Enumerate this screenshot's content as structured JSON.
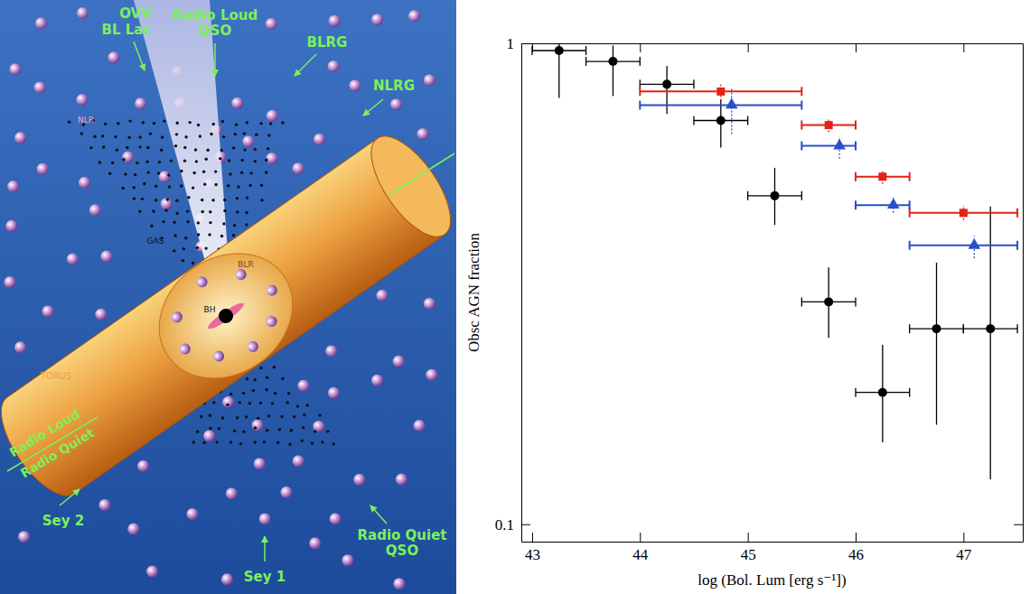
{
  "chart_data": {
    "type": "scatter",
    "x_label": "log (Bol. Lum [erg s⁻¹])",
    "y_label": "Obsc AGN fraction",
    "xlim": [
      42.9,
      47.55
    ],
    "ylim": [
      0.092,
      1
    ],
    "xticks": [
      43,
      44,
      45,
      46,
      47
    ],
    "yticks": [
      0.1,
      1
    ],
    "log": "y",
    "series": [
      {
        "color": "#000000",
        "marker": "circle",
        "line_style": "solid",
        "x": [
          43.25,
          43.75,
          44.25,
          44.75,
          45.25,
          45.75,
          46.25,
          46.75,
          47.25
        ],
        "values": [
          0.966,
          0.917,
          0.822,
          0.691,
          0.482,
          0.29,
          0.188,
          0.255,
          0.255
        ],
        "x_low": [
          43,
          43.5,
          44,
          44.5,
          45,
          45.5,
          46,
          46.5,
          47
        ],
        "x_high": [
          43.5,
          44,
          44.5,
          45,
          45.5,
          46,
          46.5,
          47,
          47.5
        ],
        "y_low": [
          0.77,
          0.777,
          0.713,
          0.607,
          0.419,
          0.244,
          0.148,
          0.161,
          0.124
        ],
        "y_high": [
          1,
          0.99,
          0.897,
          0.764,
          0.551,
          0.342,
          0.236,
          0.35,
          0.458
        ]
      },
      {
        "color": "#e32219",
        "marker": "square",
        "line_style": "dotted",
        "x": [
          44.75,
          45.75,
          46.25,
          47
        ],
        "values": [
          0.794,
          0.676,
          0.528,
          0.444
        ],
        "x_low": [
          44,
          45.5,
          46,
          46.5
        ],
        "x_high": [
          45.5,
          46,
          46.5,
          47.5
        ],
        "y_low": [
          0.76,
          0.653,
          0.51,
          0.429
        ],
        "y_high": [
          0.822,
          0.7,
          0.544,
          0.461
        ]
      },
      {
        "color": "#2a4fc9",
        "marker": "triangle",
        "line_style": "dotted",
        "x": [
          44.85,
          45.85,
          46.35,
          47.1
        ],
        "values": [
          0.744,
          0.612,
          0.461,
          0.38
        ],
        "x_low": [
          44,
          45.5,
          46,
          46.5
        ],
        "x_high": [
          45.5,
          46,
          46.5,
          47.5
        ],
        "y_low": [
          0.648,
          0.576,
          0.444,
          0.357
        ],
        "y_high": [
          0.805,
          0.639,
          0.478,
          0.398
        ]
      }
    ]
  },
  "diagram": {
    "labels": {
      "ovv": "OVV",
      "bl_lac": "BL Lac",
      "radio_loud_qso": [
        "Radio Loud",
        "QSO"
      ],
      "blrg": "BLRG",
      "nlrg": "NLRG",
      "radio_loud": "Radio Loud",
      "radio_quiet": "Radio Quiet",
      "sey2": "Sey 2",
      "sey1": "Sey 1",
      "radio_quiet_qso": [
        "Radio Quiet",
        "QSO"
      ],
      "nlr": "NLR",
      "gas": "GAS",
      "blr": "BLR",
      "bh": "BH",
      "torus": "TORUS"
    }
  }
}
